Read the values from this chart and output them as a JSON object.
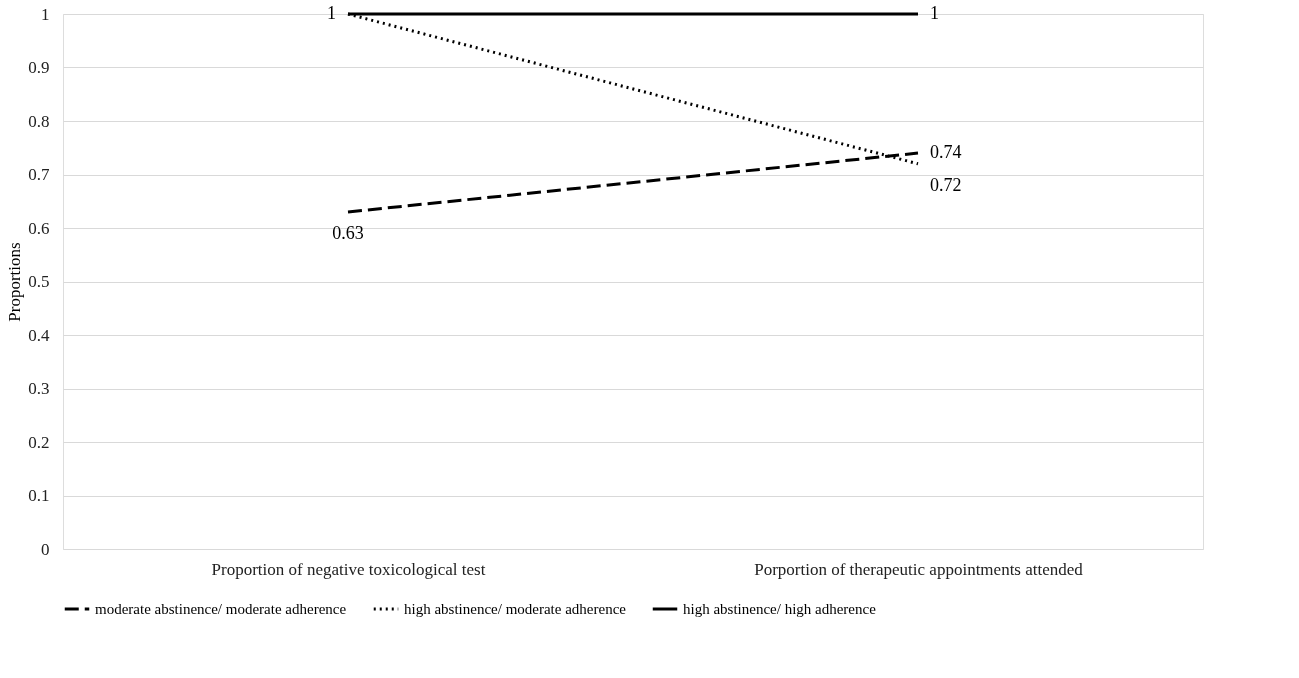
{
  "chart_data": {
    "type": "line",
    "ylabel": "Proportions",
    "categories": [
      "Proportion of negative toxicological test",
      "Porportion of therapeutic appointments attended"
    ],
    "series": [
      {
        "name": "moderate abstinence/ moderate adherence",
        "color": "#000000",
        "line_style": "dashed",
        "values": [
          0.63,
          0.74
        ],
        "value_labels": [
          "0.63",
          "0.74"
        ]
      },
      {
        "name": "high abstinence/ moderate adherence",
        "color": "#000000",
        "line_style": "dotted",
        "values": [
          1,
          0.72
        ],
        "value_labels": [
          null,
          "0.72"
        ]
      },
      {
        "name": "high abstinence/ high adherence",
        "color": "#000000",
        "line_style": "solid",
        "values": [
          1,
          1
        ],
        "value_labels": [
          "1",
          "1"
        ]
      }
    ],
    "ylim": [
      0,
      1
    ],
    "yticks": [
      0,
      0.1,
      0.2,
      0.3,
      0.4,
      0.5,
      0.6,
      0.7,
      0.8,
      0.9,
      1
    ],
    "grid": "y",
    "legend": "bottom",
    "marker": "none"
  }
}
